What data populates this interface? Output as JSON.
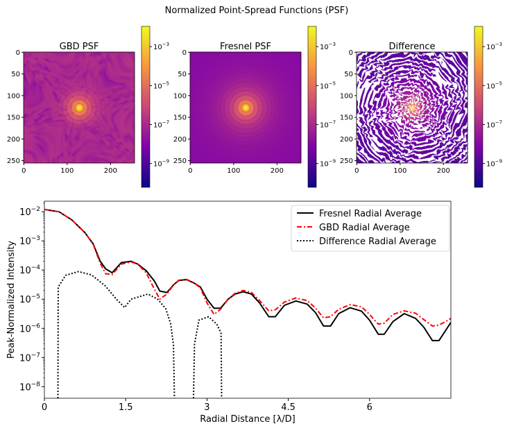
{
  "figure_title": "Normalized Point-Spread Functions (PSF)",
  "colors": {
    "fresnel": "#000000",
    "gbd": "#ff0000",
    "difference": "#000000",
    "colormap": "plasma"
  },
  "chart_data": [
    {
      "type": "heatmap",
      "title": "GBD PSF",
      "image_size": [
        256,
        256
      ],
      "xticks": [
        0,
        100,
        200
      ],
      "yticks": [
        0,
        50,
        100,
        150,
        200,
        250
      ],
      "colorbar": {
        "scale": "log",
        "range": [
          6e-11,
          0.011
        ],
        "ticks": [
          {
            "base": "10",
            "exp": "−3"
          },
          {
            "base": "10",
            "exp": "−5"
          },
          {
            "base": "10",
            "exp": "−7"
          },
          {
            "base": "10",
            "exp": "−9"
          }
        ],
        "tick_values": [
          0.001,
          1e-05,
          1e-07,
          1e-09
        ]
      },
      "colormap": "plasma"
    },
    {
      "type": "heatmap",
      "title": "Fresnel PSF",
      "image_size": [
        256,
        256
      ],
      "xticks": [
        0,
        100,
        200
      ],
      "yticks": [
        0,
        50,
        100,
        150,
        200,
        250
      ],
      "colorbar": {
        "scale": "log",
        "range": [
          6e-11,
          0.011
        ],
        "ticks": [
          {
            "base": "10",
            "exp": "−3"
          },
          {
            "base": "10",
            "exp": "−5"
          },
          {
            "base": "10",
            "exp": "−7"
          },
          {
            "base": "10",
            "exp": "−9"
          }
        ],
        "tick_values": [
          0.001,
          1e-05,
          1e-07,
          1e-09
        ]
      },
      "colormap": "plasma"
    },
    {
      "type": "heatmap",
      "title": "Difference",
      "image_size": [
        256,
        256
      ],
      "xticks": [
        0,
        100,
        200
      ],
      "yticks": [
        0,
        50,
        100,
        150,
        200,
        250
      ],
      "colorbar": {
        "scale": "log",
        "range": [
          6e-11,
          0.011
        ],
        "ticks": [
          {
            "base": "10",
            "exp": "−3"
          },
          {
            "base": "10",
            "exp": "−5"
          },
          {
            "base": "10",
            "exp": "−7"
          },
          {
            "base": "10",
            "exp": "−9"
          }
        ],
        "tick_values": [
          0.001,
          1e-05,
          1e-07,
          1e-09
        ]
      },
      "colormap": "plasma"
    },
    {
      "type": "line",
      "xlabel": "Radial Distance [λ/D]",
      "ylabel": "Peak-Normalized Intensity",
      "xlim": [
        0,
        7.5
      ],
      "ylim": [
        4e-09,
        0.023
      ],
      "yscale": "log",
      "grid": false,
      "legend_position": "top-right",
      "xticks": [
        0,
        1.5,
        3,
        4.5,
        6
      ],
      "xtick_labels": [
        "0",
        "1.5",
        "3",
        "4.5",
        "6"
      ],
      "yticks": [
        0.01,
        0.001,
        0.0001,
        1e-05,
        1e-06,
        1e-07,
        1e-08
      ],
      "ytick_labels": [
        {
          "base": "10",
          "exp": "−2"
        },
        {
          "base": "10",
          "exp": "−3"
        },
        {
          "base": "10",
          "exp": "−4"
        },
        {
          "base": "10",
          "exp": "−5"
        },
        {
          "base": "10",
          "exp": "−6"
        },
        {
          "base": "10",
          "exp": "−7"
        },
        {
          "base": "10",
          "exp": "−8"
        }
      ],
      "series": [
        {
          "name": "Fresnel Radial Average",
          "style": "solid",
          "color": "#000000",
          "x": [
            0,
            0.27,
            0.51,
            0.75,
            0.9,
            1.03,
            1.13,
            1.25,
            1.42,
            1.6,
            1.72,
            1.88,
            2.03,
            2.13,
            2.26,
            2.39,
            2.48,
            2.62,
            2.76,
            2.88,
            3.0,
            3.13,
            3.25,
            3.39,
            3.52,
            3.67,
            3.82,
            3.97,
            4.14,
            4.26,
            4.43,
            4.64,
            4.85,
            5.0,
            5.15,
            5.28,
            5.43,
            5.64,
            5.85,
            6.0,
            6.16,
            6.27,
            6.43,
            6.64,
            6.85,
            7.0,
            7.16,
            7.28,
            7.4,
            7.5
          ],
          "y": [
            0.012,
            0.01,
            0.0052,
            0.0019,
            0.00079,
            0.0002,
            0.00011,
            8.1e-05,
            0.00018,
            0.0002,
            0.00016,
            9.5e-05,
            4.2e-05,
            1.9e-05,
            1.7e-05,
            3.2e-05,
            4.4e-05,
            4.7e-05,
            3.6e-05,
            2.6e-05,
            1e-05,
            4.9e-06,
            4.9e-06,
            1e-05,
            1.5e-05,
            1.8e-05,
            1.5e-05,
            7.4e-06,
            2.5e-06,
            2.5e-06,
            6.2e-06,
            8.7e-06,
            6.8e-06,
            3.5e-06,
            1.2e-06,
            1.2e-06,
            3.2e-06,
            5.1e-06,
            3.9e-06,
            1.9e-06,
            6.3e-07,
            6.3e-07,
            1.7e-06,
            3.2e-06,
            2.2e-06,
            1.1e-06,
            3.8e-07,
            3.8e-07,
            8.3e-07,
            1.6e-06
          ]
        },
        {
          "name": "GBD Radial Average",
          "style": "dashdot",
          "color": "#ff0000",
          "x": [
            0,
            0.27,
            0.51,
            0.75,
            0.9,
            1.03,
            1.13,
            1.25,
            1.42,
            1.6,
            1.72,
            1.88,
            2.03,
            2.13,
            2.26,
            2.39,
            2.48,
            2.62,
            2.76,
            2.88,
            3.0,
            3.13,
            3.25,
            3.39,
            3.52,
            3.67,
            3.82,
            3.97,
            4.14,
            4.26,
            4.43,
            4.64,
            4.85,
            5.0,
            5.15,
            5.28,
            5.43,
            5.64,
            5.85,
            6.0,
            6.16,
            6.27,
            6.43,
            6.64,
            6.85,
            7.0,
            7.16,
            7.28,
            7.4,
            7.5
          ],
          "y": [
            0.012,
            0.01,
            0.0052,
            0.0019,
            0.00076,
            0.00017,
            7.5e-05,
            7e-05,
            0.00016,
            0.00019,
            0.00016,
            8e-05,
            2.2e-05,
            1e-05,
            1.5e-05,
            3.2e-05,
            4.5e-05,
            4.8e-05,
            3.7e-05,
            2.4e-05,
            7.5e-06,
            3e-06,
            4.5e-06,
            1e-05,
            1.6e-05,
            2e-05,
            1.7e-05,
            9e-06,
            4e-06,
            4.3e-06,
            8e-06,
            1.1e-05,
            9e-06,
            5e-06,
            2.3e-06,
            2.5e-06,
            4.5e-06,
            6.5e-06,
            5.5e-06,
            3e-06,
            1.4e-06,
            1.5e-06,
            3e-06,
            4e-06,
            3.3e-06,
            2e-06,
            1.2e-06,
            1.3e-06,
            1.7e-06,
            2.2e-06
          ]
        },
        {
          "name": "Difference Radial Average",
          "style": "dotted",
          "color": "#000000",
          "x": [
            0.25,
            0.255,
            0.39,
            0.63,
            0.87,
            1.12,
            1.33,
            1.48,
            1.6,
            1.91,
            2.09,
            2.24,
            2.33,
            2.38,
            2.4,
            2.57,
            2.75,
            2.77,
            2.85,
            3.03,
            3.18,
            3.26,
            3.27
          ],
          "y": [
            0,
            2.6e-05,
            6.6e-05,
            8.9e-05,
            6.8e-05,
            2.9e-05,
            1e-05,
            5.2e-06,
            1e-05,
            1.5e-05,
            1e-05,
            4.7e-06,
            1.4e-06,
            2.8e-07,
            0,
            null,
            0,
            2.8e-07,
            1.9e-06,
            2.5e-06,
            1.4e-06,
            6.8e-07,
            0
          ]
        }
      ]
    }
  ]
}
